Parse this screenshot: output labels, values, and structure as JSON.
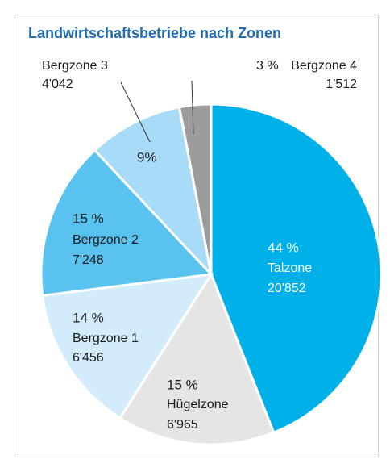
{
  "chart_data": {
    "type": "pie",
    "title": "Landwirtschaftsbetriebe nach Zonen",
    "categories": [
      "Talzone",
      "Hügelzone",
      "Bergzone 1",
      "Bergzone 2",
      "Bergzone 3",
      "Bergzone 4"
    ],
    "values": [
      44,
      15,
      14,
      15,
      9,
      3
    ],
    "value_labels": [
      "44 %",
      "15 %",
      "14 %",
      "15 %",
      "9%",
      "3 %"
    ],
    "counts": [
      20852,
      6965,
      6456,
      7248,
      4042,
      1512
    ],
    "count_labels": [
      "20'852",
      "6'965",
      "6'456",
      "7'248",
      "4'042",
      "1'512"
    ],
    "colors": [
      "#00b1e9",
      "#e5e5e5",
      "#d3ecfb",
      "#5ac2ee",
      "#a7dbf7",
      "#9c9c9c"
    ]
  }
}
